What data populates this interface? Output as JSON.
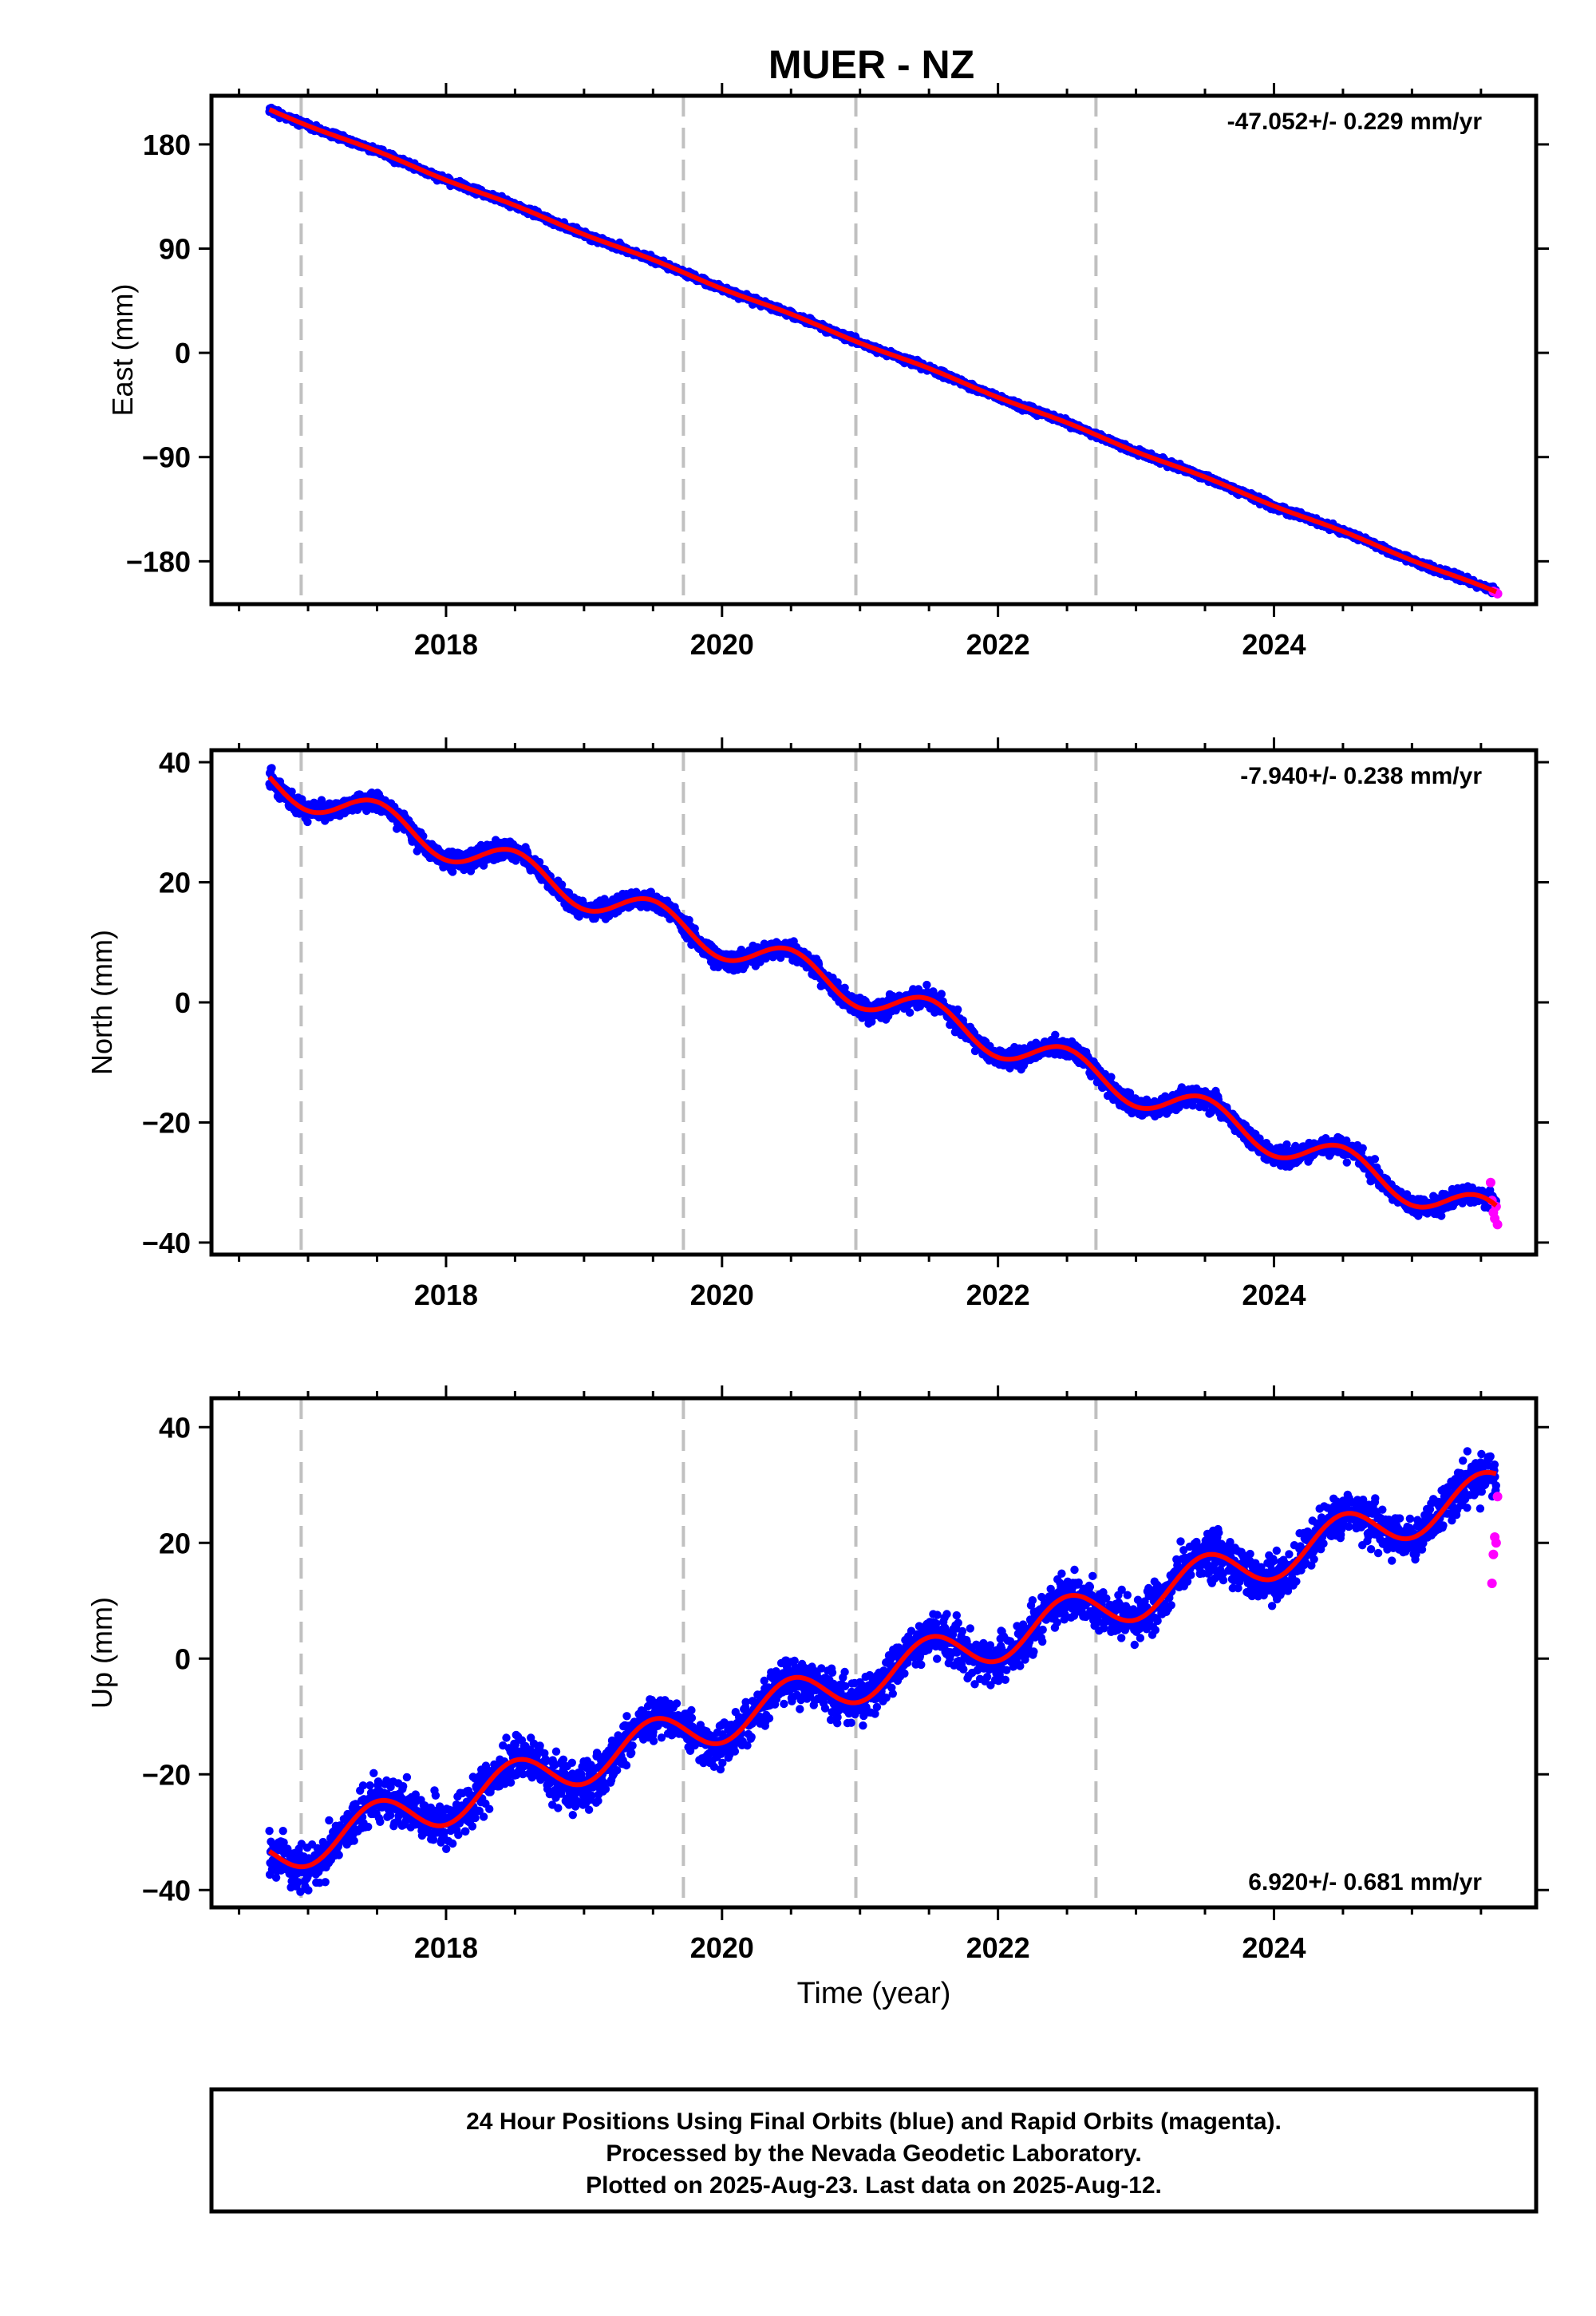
{
  "title": "MUER - NZ",
  "chart_data": [
    {
      "type": "scatter",
      "ylabel": "East (mm)",
      "xlabel": "",
      "xlim": [
        2016.3,
        2025.9
      ],
      "ylim": [
        -217,
        222
      ],
      "xticks": [
        2018,
        2020,
        2022,
        2024
      ],
      "yticks": [
        -180,
        -90,
        0,
        90,
        180
      ],
      "ytick_labels": [
        "−180",
        "−90",
        "0",
        "90",
        "180"
      ],
      "rate_label": "-47.052+/- 0.229 mm/yr",
      "rate_position": "top-right",
      "event_lines_x": [
        2016.95,
        2019.72,
        2020.97,
        2022.71
      ],
      "model": {
        "start": 2016.72,
        "end": 2025.61,
        "value_at_start": 210,
        "value_at_end": -207,
        "seasonal_amplitude": 0.8,
        "noise": 2.2
      },
      "rapid_points": {
        "x": [
          2025.59,
          2025.61,
          2025.62
        ],
        "values": [
          -206,
          -207,
          -208
        ]
      }
    },
    {
      "type": "scatter",
      "ylabel": "North (mm)",
      "xlabel": "",
      "xlim": [
        2016.3,
        2025.9
      ],
      "ylim": [
        -42,
        42
      ],
      "xticks": [
        2018,
        2020,
        2022,
        2024
      ],
      "yticks": [
        -40,
        -20,
        0,
        20,
        40
      ],
      "ytick_labels": [
        "−40",
        "−20",
        "0",
        "20",
        "40"
      ],
      "rate_label": "-7.940+/- 0.238 mm/yr",
      "rate_position": "top-right",
      "event_lines_x": [
        2016.95,
        2019.72,
        2020.97,
        2022.71
      ],
      "model": {
        "start": 2016.72,
        "end": 2025.61,
        "value_at_start": 37,
        "value_at_end": -36,
        "seasonal_amplitude": 2.8,
        "noise": 1.3
      },
      "rapid_points": {
        "x": [
          2025.57,
          2025.58,
          2025.59,
          2025.6,
          2025.61,
          2025.62
        ],
        "values": [
          -30,
          -33,
          -35,
          -36,
          -34,
          -37
        ]
      }
    },
    {
      "type": "scatter",
      "ylabel": "Up (mm)",
      "xlabel": "Time (year)",
      "xlim": [
        2016.3,
        2025.9
      ],
      "ylim": [
        -43,
        45
      ],
      "xticks": [
        2018,
        2020,
        2022,
        2024
      ],
      "yticks": [
        -40,
        -20,
        0,
        20,
        40
      ],
      "ytick_labels": [
        "−40",
        "−20",
        "0",
        "20",
        "40"
      ],
      "rate_label": "6.920+/- 0.681 mm/yr",
      "rate_position": "bottom-right",
      "event_lines_x": [
        2016.95,
        2019.72,
        2020.97,
        2022.71
      ],
      "model": {
        "start": 2016.72,
        "end": 2025.61,
        "value_at_start": -34,
        "value_at_end": 29,
        "seasonal_amplitude": 3.8,
        "noise": 3.2
      },
      "rapid_points": {
        "x": [
          2025.58,
          2025.59,
          2025.6,
          2025.61,
          2025.62
        ],
        "values": [
          13,
          18,
          21,
          20,
          28
        ]
      }
    }
  ],
  "legend_colors": {
    "final_orbits": "#0000ff",
    "rapid_orbits": "#ff00ff",
    "model": "#ff0000",
    "event_lines": "#c0c0c0"
  },
  "footer": {
    "line1": "24 Hour Positions Using Final Orbits (blue) and Rapid Orbits (magenta).",
    "line2": "Processed by the Nevada Geodetic Laboratory.",
    "line3": "Plotted on 2025-Aug-23. Last data on 2025-Aug-12."
  }
}
